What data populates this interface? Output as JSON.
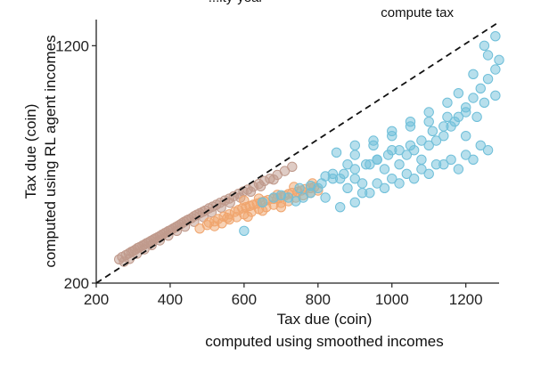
{
  "chart_data": {
    "type": "scatter",
    "title": "",
    "xlabel": [
      "Tax due (coin)",
      "computed using smoothed incomes"
    ],
    "ylabel": [
      "Tax due (coin)",
      "computed using RL agent incomes"
    ],
    "xlim": [
      200,
      1290
    ],
    "ylim": [
      200,
      1310
    ],
    "x_ticks": [
      "200",
      "400",
      "600",
      "800",
      "1000",
      "1200"
    ],
    "y_ticks": [
      "200",
      "1200"
    ],
    "annotations": [
      {
        "text": "...ity-year",
        "x": 650,
        "y": 1380
      },
      {
        "text": "compute tax",
        "x": 1165,
        "y": 1330
      }
    ],
    "reference_line": {
      "from": [
        200,
        200
      ],
      "to": [
        1290,
        1300
      ],
      "style": "dashed"
    },
    "grid": false,
    "legend": "none",
    "colors": {
      "brown": "#c09a8c",
      "orange": "#f0a56e",
      "blue": "#6fbfd9"
    },
    "series": [
      {
        "color_key": "brown",
        "x": [
          262,
          270,
          280,
          288,
          295,
          300,
          305,
          312,
          318,
          325,
          330,
          336,
          342,
          348,
          355,
          360,
          366,
          372,
          378,
          385,
          390,
          396,
          402,
          408,
          415,
          420,
          426,
          432,
          438,
          445,
          450,
          458,
          465,
          472,
          480,
          488,
          495,
          505,
          515,
          525,
          535,
          548,
          560,
          572,
          585,
          598,
          610,
          625,
          640,
          655,
          670,
          690,
          710,
          730,
          275,
          290,
          310,
          330,
          350,
          372,
          395,
          418,
          440,
          465,
          490,
          512,
          538,
          562,
          590,
          618,
          645,
          680
        ],
        "y": [
          300,
          310,
          318,
          325,
          332,
          335,
          340,
          348,
          352,
          358,
          362,
          368,
          372,
          378,
          384,
          388,
          393,
          398,
          404,
          410,
          414,
          420,
          424,
          430,
          436,
          440,
          446,
          452,
          458,
          464,
          468,
          474,
          482,
          488,
          494,
          500,
          506,
          515,
          522,
          530,
          538,
          548,
          556,
          566,
          576,
          586,
          594,
          606,
          618,
          630,
          640,
          656,
          672,
          690,
          290,
          302,
          324,
          342,
          360,
          380,
          400,
          420,
          438,
          458,
          478,
          498,
          518,
          538,
          560,
          585,
          608,
          636
        ]
      },
      {
        "color_key": "orange",
        "x": [
          480,
          500,
          520,
          530,
          545,
          560,
          575,
          585,
          595,
          605,
          615,
          625,
          635,
          645,
          655,
          665,
          680,
          690,
          700,
          710,
          720,
          730,
          745,
          755,
          765,
          780,
          790,
          520,
          540,
          560,
          580,
          600,
          620,
          640,
          660,
          680,
          700,
          720,
          740,
          760,
          780,
          800,
          600,
          640,
          690,
          735,
          785,
          505,
          555,
          610,
          650,
          700
        ],
        "y": [
          430,
          445,
          460,
          470,
          480,
          490,
          500,
          508,
          515,
          520,
          525,
          530,
          535,
          540,
          545,
          550,
          555,
          558,
          562,
          568,
          575,
          580,
          585,
          590,
          596,
          600,
          605,
          440,
          452,
          468,
          478,
          490,
          500,
          512,
          520,
          530,
          538,
          545,
          560,
          570,
          580,
          590,
          548,
          556,
          572,
          605,
          620,
          455,
          475,
          480,
          505,
          520
        ]
      },
      {
        "color_key": "blue",
        "x": [
          600,
          650,
          680,
          700,
          720,
          740,
          760,
          780,
          800,
          820,
          840,
          860,
          880,
          900,
          920,
          940,
          960,
          980,
          1000,
          1020,
          1040,
          1060,
          1080,
          1100,
          1120,
          1140,
          1160,
          1180,
          1200,
          1220,
          1240,
          1260,
          1280,
          1290,
          820,
          860,
          900,
          940,
          980,
          1020,
          1060,
          1100,
          1140,
          1180,
          1220,
          1260,
          850,
          900,
          950,
          1000,
          1050,
          1100,
          1150,
          1200,
          1250,
          1280,
          750,
          780,
          810,
          840,
          870,
          900,
          930,
          960,
          990,
          1020,
          1050,
          1080,
          1110,
          1140,
          1170,
          1200,
          1230,
          880,
          920,
          960,
          1000,
          1040,
          1080,
          1120,
          1160,
          1200,
          1240,
          1180,
          1220,
          1260,
          1280,
          1150,
          1250,
          1100,
          1050,
          1000,
          950,
          900
        ],
        "y": [
          420,
          540,
          560,
          570,
          560,
          545,
          560,
          580,
          600,
          650,
          660,
          640,
          700,
          640,
          620,
          700,
          720,
          680,
          760,
          700,
          740,
          760,
          720,
          780,
          800,
          820,
          860,
          900,
          940,
          980,
          1020,
          1060,
          1100,
          1140,
          560,
          520,
          540,
          580,
          600,
          620,
          640,
          660,
          700,
          680,
          720,
          760,
          750,
          780,
          800,
          820,
          860,
          880,
          900,
          920,
          960,
          990,
          600,
          610,
          620,
          640,
          660,
          680,
          700,
          720,
          740,
          760,
          780,
          800,
          840,
          860,
          880,
          820,
          900,
          600,
          580,
          620,
          640,
          660,
          680,
          700,
          720,
          740,
          780,
          1000,
          1080,
          1160,
          1240,
          960,
          1200,
          920,
          880,
          840,
          780,
          740
        ]
      }
    ]
  }
}
